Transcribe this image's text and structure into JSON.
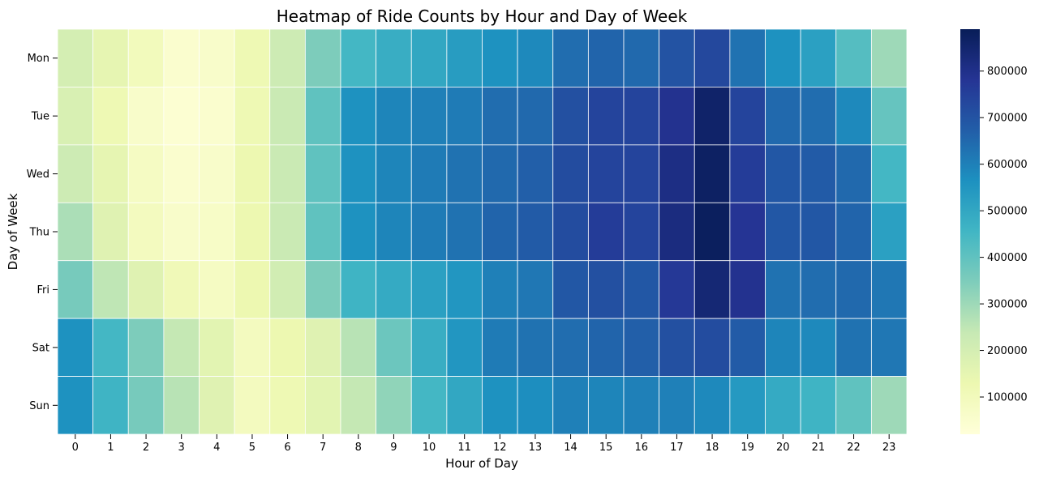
{
  "chart_data": {
    "type": "heatmap",
    "title": "Heatmap of Ride Counts by Hour and Day of Week",
    "xlabel": "Hour of Day",
    "ylabel": "Day of Week",
    "x": [
      "0",
      "1",
      "2",
      "3",
      "4",
      "5",
      "6",
      "7",
      "8",
      "9",
      "10",
      "11",
      "12",
      "13",
      "14",
      "15",
      "16",
      "17",
      "18",
      "19",
      "20",
      "21",
      "22",
      "23"
    ],
    "y": [
      "Mon",
      "Tue",
      "Wed",
      "Thu",
      "Fri",
      "Sat",
      "Sun"
    ],
    "values": [
      [
        200000,
        150000,
        100000,
        50000,
        60000,
        120000,
        220000,
        350000,
        450000,
        480000,
        500000,
        530000,
        560000,
        580000,
        640000,
        660000,
        650000,
        700000,
        730000,
        630000,
        560000,
        520000,
        420000,
        300000
      ],
      [
        190000,
        120000,
        60000,
        40000,
        50000,
        120000,
        230000,
        400000,
        560000,
        590000,
        600000,
        610000,
        640000,
        650000,
        710000,
        740000,
        740000,
        790000,
        860000,
        740000,
        650000,
        640000,
        580000,
        390000
      ],
      [
        220000,
        150000,
        80000,
        50000,
        60000,
        130000,
        230000,
        400000,
        560000,
        590000,
        610000,
        630000,
        650000,
        670000,
        720000,
        740000,
        740000,
        810000,
        870000,
        760000,
        690000,
        680000,
        650000,
        450000
      ],
      [
        280000,
        170000,
        90000,
        60000,
        70000,
        130000,
        230000,
        400000,
        560000,
        590000,
        610000,
        630000,
        660000,
        680000,
        720000,
        760000,
        740000,
        820000,
        880000,
        780000,
        690000,
        690000,
        660000,
        520000
      ],
      [
        360000,
        250000,
        170000,
        110000,
        80000,
        130000,
        210000,
        350000,
        460000,
        490000,
        520000,
        550000,
        600000,
        620000,
        690000,
        710000,
        690000,
        770000,
        840000,
        790000,
        630000,
        640000,
        650000,
        620000
      ],
      [
        560000,
        450000,
        350000,
        240000,
        160000,
        90000,
        130000,
        170000,
        260000,
        380000,
        480000,
        550000,
        610000,
        630000,
        640000,
        660000,
        670000,
        710000,
        720000,
        680000,
        590000,
        580000,
        630000,
        620000
      ],
      [
        560000,
        460000,
        360000,
        260000,
        170000,
        90000,
        120000,
        160000,
        240000,
        320000,
        450000,
        500000,
        560000,
        570000,
        600000,
        590000,
        600000,
        600000,
        580000,
        540000,
        490000,
        460000,
        400000,
        300000
      ]
    ],
    "colorbar": {
      "ticks": [
        100000,
        200000,
        300000,
        400000,
        500000,
        600000,
        700000,
        800000
      ],
      "range": [
        20000,
        890000
      ]
    },
    "colormap": [
      "#ffffd9",
      "#edf8b1",
      "#c7e9b4",
      "#7fcdbb",
      "#41b6c4",
      "#1d91c0",
      "#225ea8",
      "#253494",
      "#081d58"
    ]
  }
}
